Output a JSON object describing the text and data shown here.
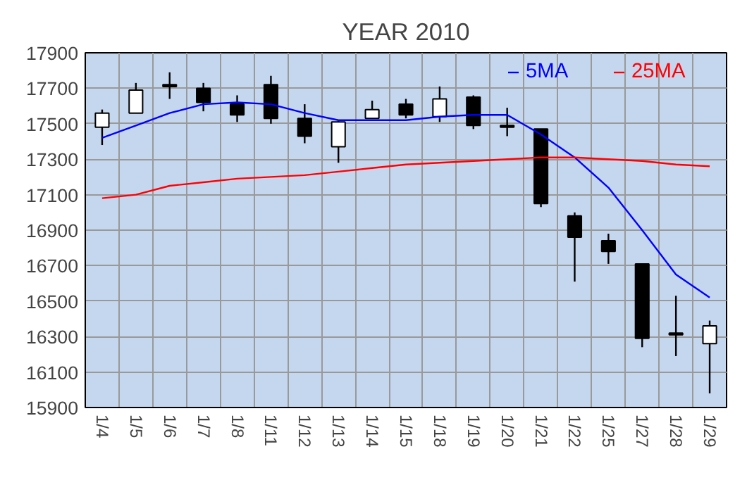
{
  "chart_data": {
    "type": "candlestick",
    "title": "YEAR 2010",
    "categories": [
      "1/4",
      "1/5",
      "1/6",
      "1/7",
      "1/8",
      "1/11",
      "1/12",
      "1/13",
      "1/14",
      "1/15",
      "1/18",
      "1/19",
      "1/20",
      "1/21",
      "1/22",
      "1/25",
      "1/27",
      "1/28",
      "1/29"
    ],
    "ohlc": [
      [
        17480,
        17580,
        17380,
        17560
      ],
      [
        17560,
        17730,
        17560,
        17690
      ],
      [
        17720,
        17790,
        17640,
        17710
      ],
      [
        17700,
        17730,
        17570,
        17620
      ],
      [
        17610,
        17660,
        17510,
        17550
      ],
      [
        17720,
        17770,
        17500,
        17530
      ],
      [
        17530,
        17610,
        17390,
        17430
      ],
      [
        17370,
        17520,
        17280,
        17510
      ],
      [
        17530,
        17630,
        17530,
        17580
      ],
      [
        17610,
        17640,
        17530,
        17550
      ],
      [
        17540,
        17710,
        17510,
        17640
      ],
      [
        17650,
        17660,
        17470,
        17490
      ],
      [
        17490,
        17590,
        17430,
        17480
      ],
      [
        17470,
        17470,
        17030,
        17050
      ],
      [
        16980,
        17000,
        16610,
        16860
      ],
      [
        16840,
        16880,
        16710,
        16780
      ],
      [
        16710,
        16710,
        16240,
        16290
      ],
      [
        16320,
        16530,
        16190,
        16310
      ],
      [
        16260,
        16390,
        15980,
        16360
      ]
    ],
    "series": [
      {
        "name": "5MA",
        "type": "line",
        "color": "#0000ff",
        "values": [
          17420,
          17490,
          17560,
          17610,
          17620,
          17610,
          17560,
          17520,
          17520,
          17520,
          17540,
          17550,
          17550,
          17440,
          17310,
          17140,
          16900,
          16650,
          16520
        ]
      },
      {
        "name": "25MA",
        "type": "line",
        "color": "#ff0000",
        "values": [
          17080,
          17100,
          17150,
          17170,
          17190,
          17200,
          17210,
          17230,
          17250,
          17270,
          17280,
          17290,
          17300,
          17310,
          17310,
          17300,
          17290,
          17270,
          17260
        ]
      }
    ],
    "ylim": [
      15900,
      17900
    ],
    "yticks": [
      15900,
      16100,
      16300,
      16500,
      16700,
      16900,
      17100,
      17300,
      17500,
      17700,
      17900
    ],
    "grid": true,
    "legend": "top right"
  }
}
